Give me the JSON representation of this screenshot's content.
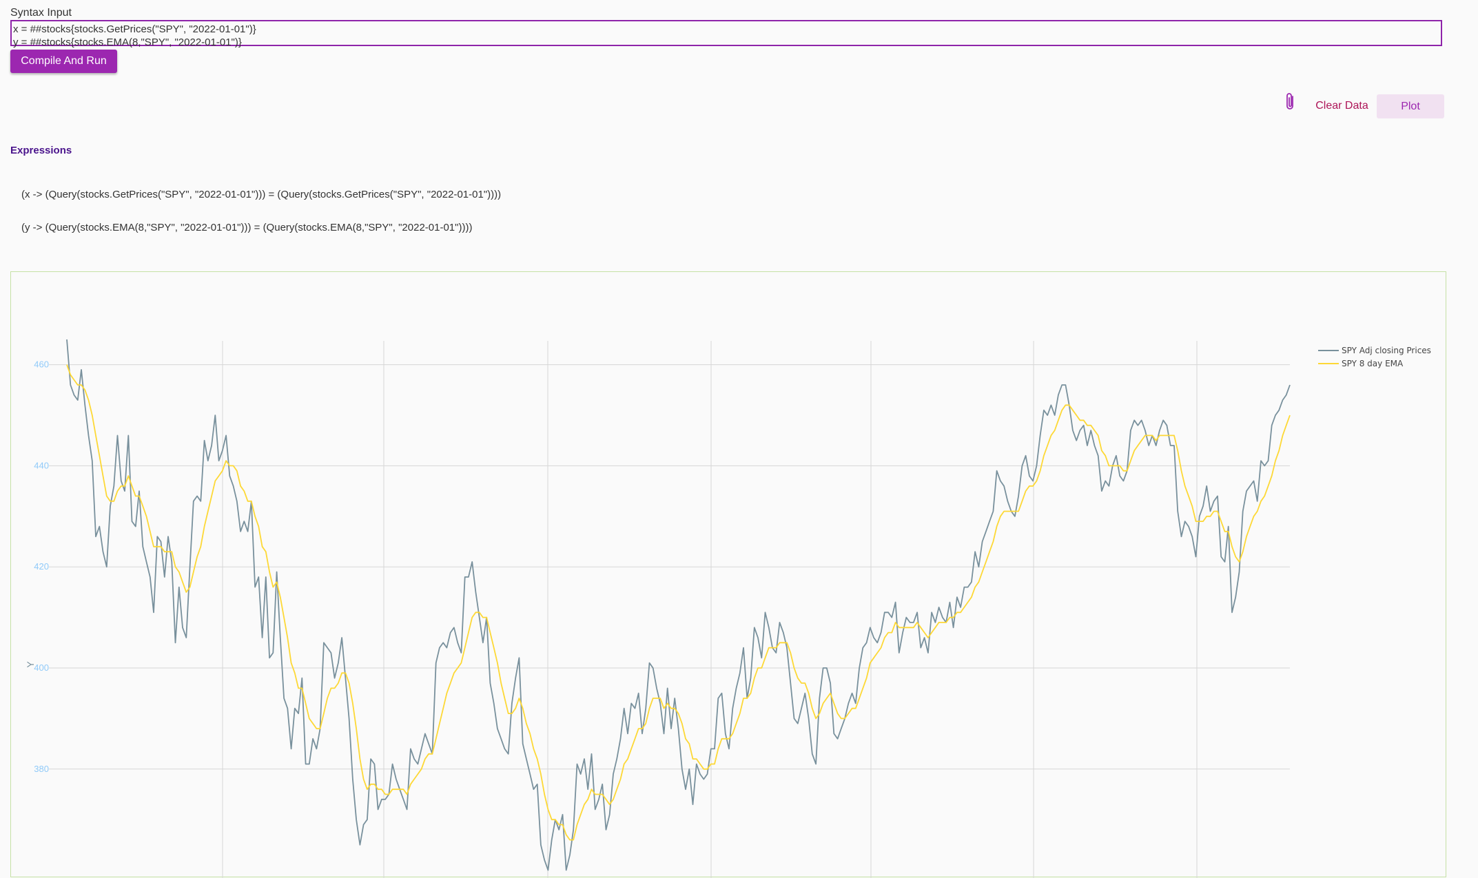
{
  "syntax": {
    "label": "Syntax Input",
    "lines": [
      "x = ##stocks{stocks.GetPrices(\"SPY\", \"2022-01-01\")}",
      "y = ##stocks{stocks.EMA(8,\"SPY\", \"2022-01-01\")}"
    ]
  },
  "buttons": {
    "compile": "Compile And Run",
    "clear": "Clear Data",
    "plot": "Plot"
  },
  "icons": {
    "attach": "paperclip-icon"
  },
  "expressions": {
    "heading": "Expressions",
    "items": [
      "(x -> (Query(stocks.GetPrices(\"SPY\", \"2022-01-01\"))) = (Query(stocks.GetPrices(\"SPY\", \"2022-01-01\"))))",
      "(y -> (Query(stocks.EMA(8,\"SPY\", \"2022-01-01\"))) = (Query(stocks.EMA(8,\"SPY\", \"2022-01-01\"))))"
    ]
  },
  "colors": {
    "accent": "#9c27b0",
    "price_line": "#78909c",
    "ema_line": "#fdd835",
    "tick_label": "#90caf9"
  },
  "chart_data": {
    "type": "line",
    "ylabel": "Y",
    "xlabel": "",
    "ylim": [
      370,
      465
    ],
    "yticks": [
      380,
      400,
      420,
      440,
      460
    ],
    "grid": true,
    "legend_position": "top-right",
    "series": [
      {
        "name": "SPY Adj closing Prices",
        "color": "#78909c",
        "values": [
          465,
          456,
          454,
          453,
          459,
          452,
          446,
          441,
          426,
          428,
          423,
          420,
          432,
          436,
          446,
          437,
          435,
          446,
          429,
          428,
          435,
          424,
          421,
          418,
          411,
          426,
          425,
          418,
          426,
          421,
          405,
          416,
          408,
          406,
          420,
          433,
          434,
          433,
          445,
          441,
          444,
          450,
          441,
          443,
          446,
          438,
          436,
          433,
          427,
          429,
          427,
          433,
          416,
          418,
          406,
          418,
          402,
          403,
          419,
          406,
          394,
          392,
          384,
          392,
          391,
          398,
          381,
          381,
          386,
          384,
          388,
          405,
          404,
          403,
          398,
          401,
          406,
          398,
          390,
          378,
          370,
          365,
          369,
          370,
          382,
          381,
          372,
          374,
          374,
          375,
          381,
          378,
          376,
          374,
          372,
          384,
          382,
          381,
          384,
          387,
          385,
          383,
          401,
          404,
          405,
          404,
          407,
          408,
          405,
          403,
          418,
          418,
          421,
          415,
          410,
          405,
          410,
          397,
          393,
          388,
          386,
          384,
          383,
          393,
          398,
          402,
          385,
          382,
          379,
          376,
          377,
          365,
          362,
          360,
          366,
          370,
          368,
          371,
          360,
          363,
          368,
          381,
          379,
          382,
          376,
          383,
          372,
          374,
          377,
          368,
          371,
          379,
          382,
          386,
          392,
          387,
          393,
          392,
          395,
          387,
          392,
          401,
          400,
          396,
          393,
          387,
          396,
          388,
          394,
          388,
          380,
          376,
          380,
          373,
          381,
          379,
          378,
          379,
          384,
          384,
          394,
          395,
          387,
          384,
          392,
          396,
          399,
          404,
          394,
          398,
          408,
          406,
          402,
          411,
          408,
          404,
          403,
          409,
          407,
          404,
          397,
          390,
          389,
          392,
          395,
          390,
          383,
          381,
          394,
          400,
          400,
          397,
          387,
          386,
          388,
          390,
          393,
          395,
          393,
          400,
          404,
          405,
          408,
          406,
          405,
          407,
          411,
          411,
          410,
          413,
          403,
          407,
          410,
          409,
          409,
          411,
          404,
          406,
          403,
          411,
          409,
          412,
          410,
          409,
          413,
          408,
          414,
          412,
          416,
          416,
          417,
          423,
          420,
          425,
          427,
          429,
          431,
          439,
          437,
          436,
          433,
          431,
          430,
          434,
          440,
          442,
          438,
          437,
          440,
          446,
          451,
          450,
          452,
          450,
          454,
          456,
          456,
          452,
          447,
          445,
          447,
          448,
          444,
          447,
          444,
          442,
          435,
          437,
          436,
          440,
          442,
          438,
          437,
          439,
          447,
          449,
          448,
          449,
          447,
          444,
          446,
          444,
          447,
          449,
          448,
          444,
          444,
          431,
          426,
          429,
          428,
          426,
          422,
          430,
          432,
          436,
          431,
          433,
          434,
          422,
          421,
          428,
          411,
          414,
          419,
          431,
          435,
          436,
          437,
          433,
          441,
          440,
          441,
          448,
          450,
          451,
          453,
          454,
          456
        ]
      },
      {
        "name": "SPY 8 day EMA",
        "color": "#fdd835",
        "values": [
          460,
          458,
          457,
          456,
          456,
          455,
          453,
          450,
          446,
          442,
          438,
          434,
          433,
          433,
          435,
          436,
          436,
          438,
          436,
          434,
          434,
          432,
          430,
          427,
          424,
          424,
          424,
          423,
          423,
          423,
          420,
          419,
          417,
          415,
          416,
          419,
          422,
          424,
          428,
          431,
          434,
          437,
          438,
          439,
          441,
          440,
          440,
          439,
          436,
          435,
          433,
          433,
          430,
          428,
          424,
          423,
          419,
          416,
          417,
          414,
          410,
          406,
          401,
          399,
          396,
          396,
          393,
          390,
          389,
          388,
          388,
          391,
          394,
          396,
          396,
          397,
          399,
          399,
          397,
          393,
          388,
          382,
          378,
          376,
          377,
          377,
          376,
          376,
          375,
          375,
          376,
          376,
          376,
          376,
          375,
          377,
          378,
          379,
          380,
          382,
          383,
          383,
          386,
          389,
          392,
          395,
          397,
          399,
          400,
          401,
          404,
          407,
          410,
          411,
          411,
          410,
          410,
          407,
          404,
          401,
          397,
          394,
          391,
          391,
          392,
          394,
          392,
          389,
          387,
          384,
          382,
          379,
          375,
          372,
          370,
          370,
          369,
          369,
          367,
          366,
          366,
          369,
          371,
          373,
          374,
          376,
          375,
          375,
          375,
          374,
          373,
          374,
          376,
          378,
          381,
          382,
          384,
          386,
          388,
          388,
          389,
          392,
          394,
          394,
          394,
          392,
          393,
          392,
          392,
          391,
          389,
          386,
          385,
          382,
          382,
          381,
          380,
          380,
          381,
          381,
          384,
          386,
          386,
          386,
          387,
          389,
          391,
          394,
          394,
          395,
          398,
          400,
          400,
          402,
          404,
          404,
          404,
          405,
          405,
          405,
          403,
          400,
          398,
          397,
          397,
          395,
          392,
          390,
          391,
          393,
          394,
          395,
          393,
          391,
          390,
          390,
          391,
          392,
          392,
          394,
          396,
          398,
          401,
          402,
          403,
          404,
          406,
          407,
          407,
          409,
          408,
          408,
          408,
          408,
          408,
          409,
          408,
          407,
          406,
          407,
          408,
          409,
          409,
          409,
          410,
          410,
          411,
          411,
          412,
          413,
          414,
          416,
          417,
          419,
          421,
          423,
          425,
          428,
          430,
          431,
          431,
          431,
          431,
          431,
          433,
          435,
          436,
          436,
          437,
          439,
          442,
          444,
          446,
          447,
          449,
          451,
          452,
          452,
          451,
          450,
          449,
          449,
          448,
          448,
          447,
          446,
          443,
          442,
          440,
          440,
          440,
          440,
          439,
          439,
          441,
          443,
          444,
          445,
          446,
          446,
          446,
          445,
          446,
          446,
          446,
          446,
          446,
          443,
          439,
          436,
          434,
          432,
          429,
          429,
          429,
          430,
          430,
          431,
          431,
          429,
          427,
          427,
          424,
          422,
          421,
          423,
          426,
          428,
          430,
          431,
          433,
          434,
          436,
          438,
          441,
          443,
          446,
          448,
          450
        ]
      }
    ]
  }
}
